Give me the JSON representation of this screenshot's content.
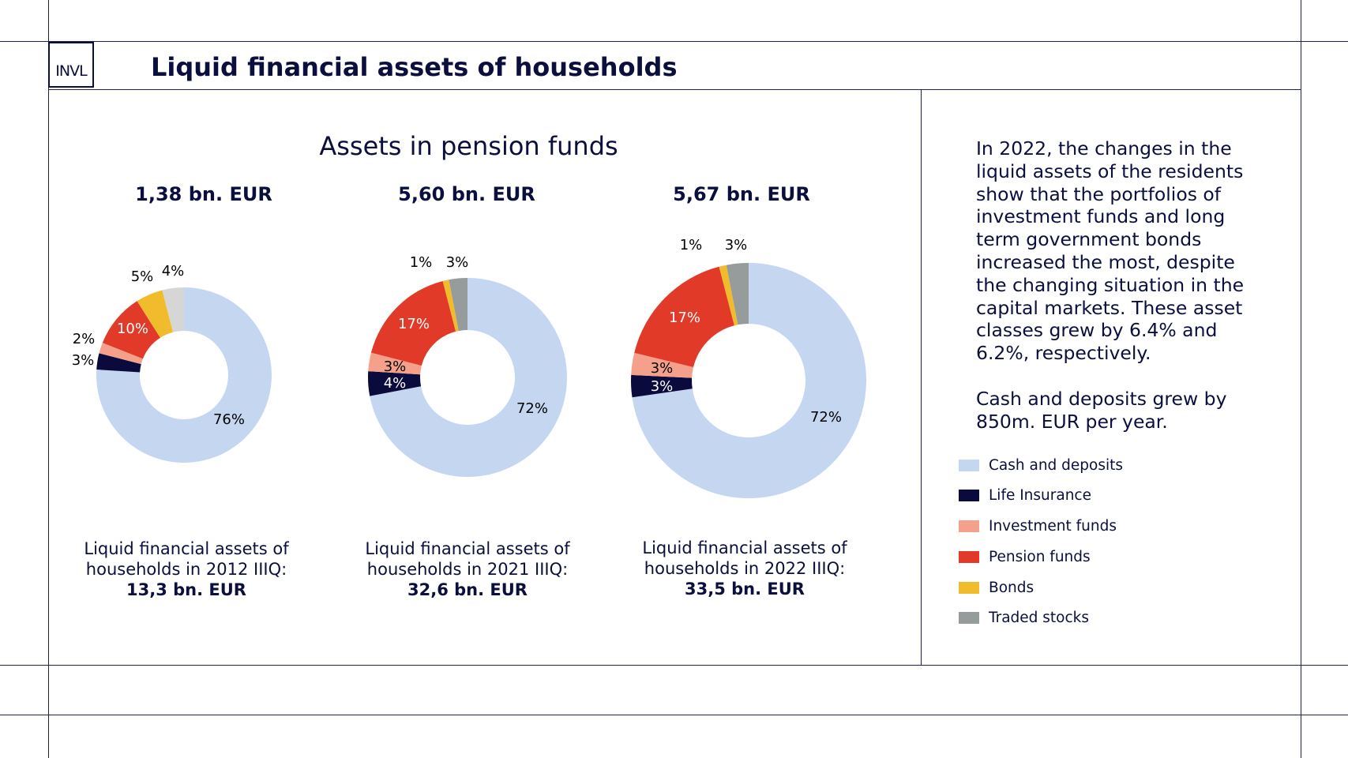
{
  "header": {
    "logo_text": "INVL",
    "title": "Liquid financial assets of households"
  },
  "chart_heading": "Assets in pension funds",
  "colors": {
    "cash": "#c5d6f1",
    "life": "#0a0a3c",
    "investment": "#f4a08a",
    "pension": "#e23a28",
    "bonds": "#f0bc2c",
    "stocks_2012": "#d6d6d6",
    "stocks": "#969b9b"
  },
  "chart_data": [
    {
      "type": "pie",
      "title": "1,38 bn. EUR",
      "caption_lines": [
        "Liquid financial assets of",
        "households in 2012 IIIQ:"
      ],
      "caption_total": "13,3 bn. EUR",
      "slices": [
        {
          "label": "Cash and deposits",
          "value": 76,
          "text": "76%"
        },
        {
          "label": "Life Insurance",
          "value": 3,
          "text": "3%"
        },
        {
          "label": "Investment funds",
          "value": 2,
          "text": "2%"
        },
        {
          "label": "Pension funds",
          "value": 10,
          "text": "10%"
        },
        {
          "label": "Bonds",
          "value": 5,
          "text": "5%"
        },
        {
          "label": "Traded stocks",
          "value": 4,
          "text": "4%"
        }
      ]
    },
    {
      "type": "pie",
      "title": "5,60 bn. EUR",
      "caption_lines": [
        "Liquid financial assets of",
        "households in 2021 IIIQ:"
      ],
      "caption_total": "32,6 bn. EUR",
      "slices": [
        {
          "label": "Cash and deposits",
          "value": 72,
          "text": "72%"
        },
        {
          "label": "Life Insurance",
          "value": 4,
          "text": "4%"
        },
        {
          "label": "Investment funds",
          "value": 3,
          "text": "3%"
        },
        {
          "label": "Pension funds",
          "value": 17,
          "text": "17%"
        },
        {
          "label": "Bonds",
          "value": 1,
          "text": "1%"
        },
        {
          "label": "Traded stocks",
          "value": 3,
          "text": "3%"
        }
      ]
    },
    {
      "type": "pie",
      "title": "5,67 bn. EUR",
      "caption_lines": [
        "Liquid financial assets of",
        "households in 2022 IIIQ:"
      ],
      "caption_total": "33,5 bn. EUR",
      "slices": [
        {
          "label": "Cash and deposits",
          "value": 72,
          "text": "72%"
        },
        {
          "label": "Life Insurance",
          "value": 3,
          "text": "3%"
        },
        {
          "label": "Investment funds",
          "value": 3,
          "text": "3%"
        },
        {
          "label": "Pension funds",
          "value": 17,
          "text": "17%"
        },
        {
          "label": "Bonds",
          "value": 1,
          "text": "1%"
        },
        {
          "label": "Traded stocks",
          "value": 3,
          "text": "3%"
        }
      ]
    }
  ],
  "commentary": {
    "paragraph1": "In 2022, the changes in the liquid assets of the residents show that the portfolios of investment funds and long term government bonds increased the most, despite the changing situation in the capital markets. These asset classes grew by 6.4% and 6.2%, respectively.",
    "paragraph2": "Cash and deposits grew by 850m. EUR per year."
  },
  "legend": [
    {
      "label": "Cash and deposits",
      "color": "#c5d6f1"
    },
    {
      "label": "Life Insurance",
      "color": "#0a0a3c"
    },
    {
      "label": "Investment funds",
      "color": "#f4a08a"
    },
    {
      "label": "Pension funds",
      "color": "#e23a28"
    },
    {
      "label": "Bonds",
      "color": "#f0bc2c"
    },
    {
      "label": "Traded stocks",
      "color": "#969b9b"
    }
  ]
}
